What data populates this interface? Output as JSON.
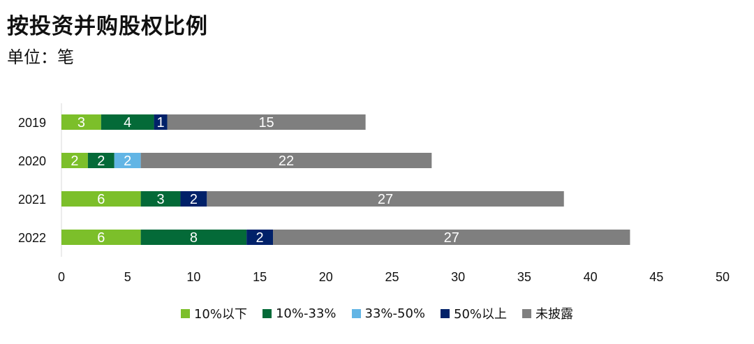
{
  "chart_data": {
    "type": "bar",
    "orientation": "horizontal",
    "stacked": true,
    "title": "按投资并购股权比例",
    "subtitle": "单位：笔",
    "categories": [
      "2019",
      "2020",
      "2021",
      "2022"
    ],
    "series": [
      {
        "name": "10%以下",
        "color": "#7CBF2A",
        "values": [
          3,
          2,
          6,
          6
        ]
      },
      {
        "name": "10%-33%",
        "color": "#046A38",
        "values": [
          4,
          2,
          3,
          8
        ]
      },
      {
        "name": "33%-50%",
        "color": "#62B5E5",
        "values": [
          0,
          2,
          0,
          0
        ]
      },
      {
        "name": "50%以上",
        "color": "#012169",
        "values": [
          1,
          0,
          2,
          2
        ]
      },
      {
        "name": "未披露",
        "color": "#7F7F7F",
        "values": [
          15,
          22,
          27,
          27
        ]
      }
    ],
    "xlim": [
      0,
      50
    ],
    "xticks": [
      0,
      5,
      10,
      15,
      20,
      25,
      30,
      35,
      40,
      45,
      50
    ],
    "legend_position": "bottom",
    "grid": false
  }
}
